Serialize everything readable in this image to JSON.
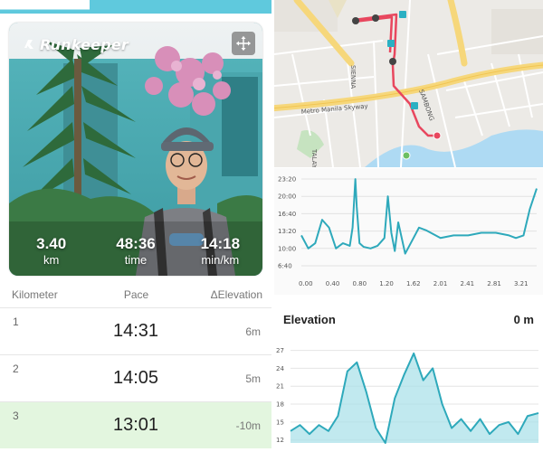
{
  "colors": {
    "accent": "#2bb0c3",
    "progress": "#5fc9dd",
    "route": "#e8475e",
    "highlight_row": "#e3f6df",
    "chart_line": "#2ea9bb",
    "chart_fill": "#a7e0e8"
  },
  "left": {
    "progress_fraction": 0.33,
    "brand": "Runkeeper",
    "expand_icon": "move-arrows-icon",
    "stats": [
      {
        "value": "3.40",
        "unit": "km"
      },
      {
        "value": "48:36",
        "unit": "time"
      },
      {
        "value": "14:18",
        "unit": "min/km"
      }
    ],
    "splits": {
      "headers": {
        "km": "Kilometer",
        "pace": "Pace",
        "elevation": "ΔElevation"
      },
      "rows": [
        {
          "index": "1",
          "pace": "14:31",
          "elevation": "6m"
        },
        {
          "index": "2",
          "pace": "14:05",
          "elevation": "5m"
        },
        {
          "index": "3",
          "pace": "13:01",
          "elevation": "-10m",
          "highlighted": true
        }
      ]
    }
  },
  "map": {
    "street_labels": [
      "SIENNA",
      "TALAYAN",
      "Metro Manila Skyway",
      "SAMBONG"
    ],
    "route_markers": [
      "start-pin",
      "end-pin",
      "km-1",
      "km-2",
      "km-3"
    ]
  },
  "pace_chart": {
    "y_ticks": [
      "23:20",
      "20:00",
      "16:40",
      "13:20",
      "10:00",
      "6:40"
    ],
    "x_ticks": [
      "0.00",
      "0.40",
      "0.80",
      "1.20",
      "1.62",
      "2.01",
      "2.41",
      "2.81",
      "3.21"
    ]
  },
  "elevation": {
    "title": "Elevation",
    "current": "0 m",
    "y_ticks": [
      "27",
      "24",
      "21",
      "18",
      "15",
      "12"
    ]
  },
  "chart_data": [
    {
      "type": "line",
      "title": "",
      "xlabel": "",
      "ylabel": "",
      "x": [
        0.0,
        0.1,
        0.2,
        0.3,
        0.4,
        0.5,
        0.6,
        0.7,
        0.74,
        0.78,
        0.8,
        0.84,
        0.9,
        1.0,
        1.1,
        1.2,
        1.25,
        1.3,
        1.35,
        1.4,
        1.5,
        1.62,
        1.7,
        1.8,
        2.01,
        2.2,
        2.41,
        2.6,
        2.81,
        3.0,
        3.1,
        3.21,
        3.3,
        3.4
      ],
      "series": [
        {
          "values": [
            12.5,
            10.0,
            11.0,
            15.5,
            14.0,
            10.0,
            11.0,
            10.5,
            14.0,
            23.3,
            18.0,
            11.0,
            10.3,
            10.0,
            10.5,
            12.0,
            20.0,
            13.0,
            9.5,
            15.0,
            9.0,
            12.0,
            14.0,
            13.5,
            12.0,
            12.5,
            12.5,
            13.0,
            13.0,
            12.5,
            12.0,
            12.5,
            17.5,
            21.5
          ]
        }
      ],
      "ylim": [
        6.67,
        23.33
      ],
      "xlim": [
        0,
        3.4
      ],
      "grid": true
    },
    {
      "type": "area",
      "title": "Elevation",
      "xlabel": "",
      "ylabel": "",
      "x": [
        0.0,
        0.13,
        0.26,
        0.39,
        0.52,
        0.65,
        0.78,
        0.91,
        1.04,
        1.17,
        1.3,
        1.43,
        1.56,
        1.69,
        1.82,
        1.95,
        2.08,
        2.21,
        2.34,
        2.47,
        2.6,
        2.73,
        2.86,
        2.99,
        3.12,
        3.25,
        3.4
      ],
      "series": [
        {
          "values": [
            13.5,
            14.5,
            13.0,
            14.5,
            13.5,
            16.0,
            23.5,
            25.0,
            20.0,
            14.0,
            11.5,
            19.0,
            23.0,
            26.5,
            22.0,
            24.0,
            18.0,
            14.0,
            15.5,
            13.5,
            15.5,
            13.0,
            14.5,
            15.0,
            13.0,
            16.0,
            16.5
          ]
        }
      ],
      "ylim": [
        11.5,
        28
      ],
      "grid": true
    }
  ]
}
